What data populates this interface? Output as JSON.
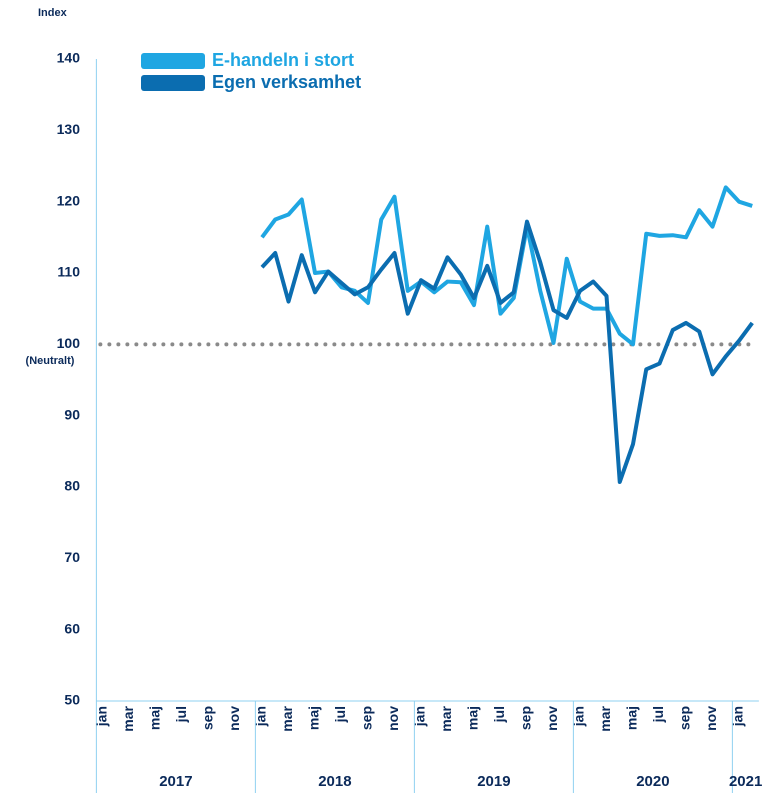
{
  "chart_data": {
    "type": "line",
    "y_axis_label": "Index",
    "reference_line": 100,
    "reference_label": "(Neutralt)",
    "ylim": [
      50,
      140
    ],
    "yticks": [
      50,
      60,
      70,
      80,
      90,
      100,
      110,
      120,
      130,
      140
    ],
    "categories": [
      "jan",
      null,
      "mar",
      null,
      "maj",
      null,
      "jul",
      null,
      "sep",
      null,
      "nov",
      null,
      "jan",
      null,
      "mar",
      null,
      "maj",
      null,
      "jul",
      null,
      "sep",
      null,
      "nov",
      null,
      "jan",
      null,
      "mar",
      null,
      "maj",
      null,
      "jul",
      null,
      "sep",
      null,
      "nov",
      null,
      "jan",
      null,
      "mar",
      null,
      "maj",
      null,
      "jul",
      null,
      "sep",
      null,
      "nov",
      null,
      "jan",
      null
    ],
    "years": [
      "2017",
      "2018",
      "2019",
      "2020",
      "2021"
    ],
    "series": [
      {
        "name": "E-handeln i stort",
        "color": "#1fa6e2",
        "values": [
          null,
          null,
          null,
          null,
          null,
          null,
          null,
          null,
          null,
          null,
          null,
          null,
          115,
          117.5,
          118.2,
          120.3,
          110,
          110.2,
          108,
          107.5,
          105.8,
          117.5,
          120.7,
          107.5,
          108.8,
          107.3,
          108.8,
          108.7,
          105.5,
          116.5,
          104.3,
          106.5,
          116.5,
          107.5,
          100.2,
          112,
          106,
          105,
          105,
          101.5,
          100,
          115.5,
          115.2,
          115.3,
          115,
          118.8,
          116.5,
          122,
          120,
          119.4
        ]
      },
      {
        "name": "Egen verksamhet",
        "color": "#0b6db0",
        "values": [
          null,
          null,
          null,
          null,
          null,
          null,
          null,
          null,
          null,
          null,
          null,
          null,
          110.8,
          112.8,
          106,
          112.5,
          107.3,
          110.2,
          108.6,
          107,
          108,
          110.5,
          112.8,
          104.3,
          109,
          107.8,
          112.2,
          109.8,
          106.5,
          111,
          105.8,
          107.3,
          117.2,
          111.5,
          104.8,
          103.7,
          107.5,
          108.8,
          106.8,
          80.7,
          86,
          96.5,
          97.3,
          102,
          103,
          101.8,
          95.8,
          98.3,
          100.5,
          103
        ]
      }
    ]
  }
}
